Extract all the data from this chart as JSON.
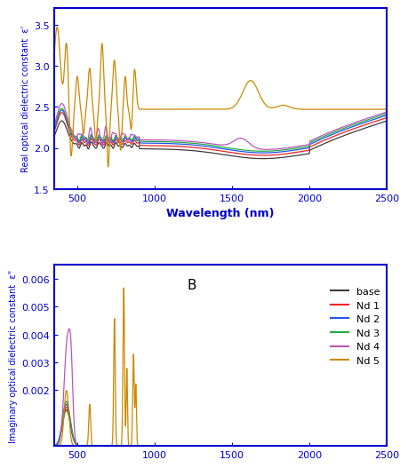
{
  "xlabel": "Wavelength (nm)",
  "ylabel_A": "Real optical dielectric constant  ε'",
  "ylabel_B": "Imaginary optical dielectric constant  ε\"",
  "title_B": "B",
  "xlim": [
    350,
    2500
  ],
  "ylim_A": [
    1.5,
    3.7
  ],
  "ylim_B": [
    0.0,
    0.0065
  ],
  "yticks_A": [
    1.5,
    2.0,
    2.5,
    3.0,
    3.5
  ],
  "yticks_B": [
    0.002,
    0.003,
    0.004,
    0.005,
    0.006
  ],
  "xticks": [
    500,
    1000,
    1500,
    2000,
    2500
  ],
  "colors": {
    "base": "#3d3d3d",
    "Nd1": "#ee2222",
    "Nd2": "#2255ee",
    "Nd3": "#22aa44",
    "Nd4": "#bb55bb",
    "Nd5": "#cc8800"
  },
  "legend_labels": [
    "base",
    "Nd 1",
    "Nd 2",
    "Nd 3",
    "Nd 4",
    "Nd 5"
  ],
  "label_color": "#0000cc",
  "tick_color": "#0000cc",
  "spine_color": "#0000cc"
}
